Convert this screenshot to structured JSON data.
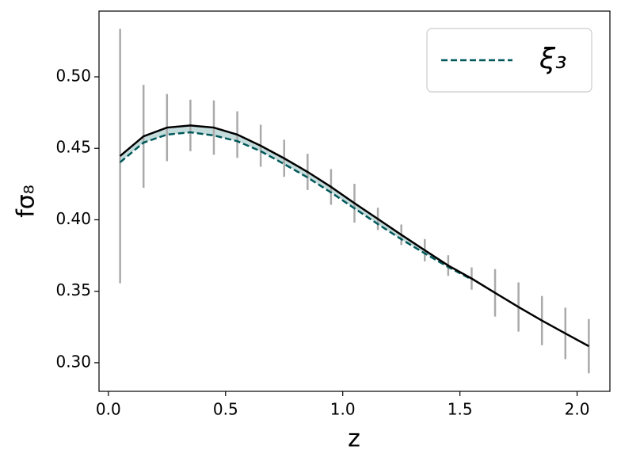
{
  "chart_data": {
    "type": "line",
    "xlabel": "z",
    "ylabel": "fσ₈",
    "x": [
      0.05,
      0.15,
      0.25,
      0.35,
      0.45,
      0.55,
      0.65,
      0.75,
      0.85,
      0.95,
      1.05,
      1.15,
      1.25,
      1.35,
      1.45,
      1.55,
      1.65,
      1.75,
      1.85,
      1.95,
      2.05
    ],
    "series": [
      {
        "name": "ξ₃",
        "color": "#00585a",
        "dash": true,
        "values": [
          0.4402,
          0.454,
          0.4596,
          0.4612,
          0.459,
          0.455,
          0.448,
          0.439,
          0.4296,
          0.4191,
          0.408,
          0.397,
          0.3864,
          0.3765,
          0.367,
          0.3583,
          null,
          null,
          null,
          null,
          null
        ]
      },
      {
        "color": "#000000",
        "dash": false,
        "values": [
          0.4446,
          0.4584,
          0.4645,
          0.466,
          0.4645,
          0.4596,
          0.4518,
          0.443,
          0.4335,
          0.423,
          0.4116,
          0.4006,
          0.3895,
          0.3787,
          0.368,
          0.3589,
          0.3489,
          0.339,
          0.3295,
          0.3205,
          0.3116
        ]
      }
    ],
    "errors": [
      0.089,
      0.036,
      0.0235,
      0.018,
      0.019,
      0.0163,
      0.0147,
      0.013,
      0.0127,
      0.0125,
      0.0136,
      0.0078,
      0.0072,
      0.0078,
      0.0072,
      0.0078,
      0.0166,
      0.0172,
      0.0172,
      0.018,
      0.019
    ],
    "errorbar_color": "#aaaaaa",
    "fill_color": "#c5dcdc",
    "xlim": [
      -0.04,
      2.14
    ],
    "xticks": [
      {
        "value": 0,
        "label": "0.0"
      },
      0.5,
      {
        "value": 1,
        "label": "1.0"
      },
      1.5,
      {
        "value": 2,
        "label": "2.0"
      }
    ],
    "ylim": [
      0.28,
      0.546
    ],
    "yticks": [
      {
        "value": 0.3,
        "label": "0.30"
      },
      0.35,
      {
        "value": 0.4,
        "label": "0.40"
      },
      0.45,
      {
        "value": 0.5,
        "label": "0.50"
      }
    ],
    "legend": "upper right"
  }
}
